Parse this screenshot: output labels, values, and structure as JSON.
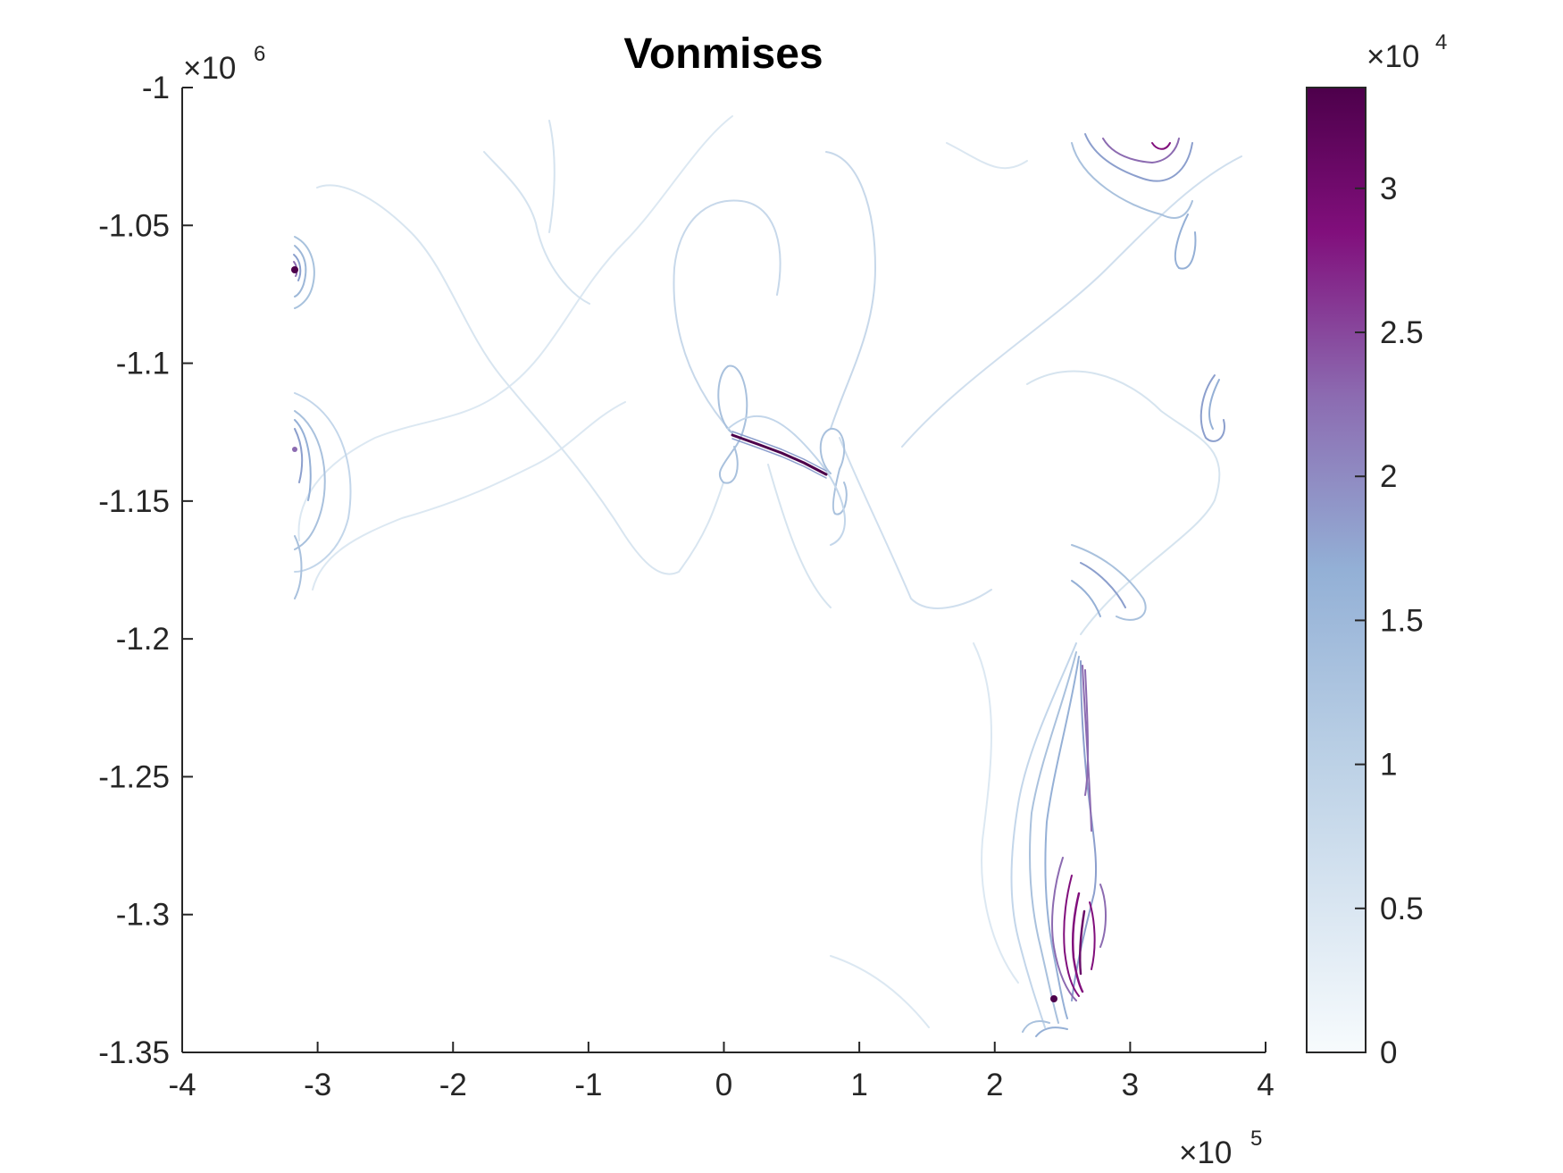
{
  "chart_data": {
    "type": "contour",
    "title": "Vonmises",
    "xlabel": "",
    "ylabel": "",
    "xlim": [
      -400000,
      400000
    ],
    "ylim": [
      -1350000,
      -1000000
    ],
    "x_ticks": [
      -4,
      -3,
      -2,
      -1,
      0,
      1,
      2,
      3,
      4
    ],
    "x_tick_labels": [
      "-4",
      "-3",
      "-2",
      "-1",
      "0",
      "1",
      "2",
      "3",
      "4"
    ],
    "x_exponent_label": "×10",
    "x_exponent": "5",
    "y_ticks": [
      -1,
      -1.05,
      -1.1,
      -1.15,
      -1.2,
      -1.25,
      -1.3,
      -1.35
    ],
    "y_tick_labels": [
      "-1",
      "-1.05",
      "-1.1",
      "-1.15",
      "-1.2",
      "-1.25",
      "-1.3",
      "-1.35"
    ],
    "y_exponent_label": "×10",
    "y_exponent": "6",
    "colorbar": {
      "range": [
        0,
        33500
      ],
      "ticks": [
        0,
        0.5,
        1,
        1.5,
        2,
        2.5,
        3
      ],
      "tick_labels": [
        "0",
        "0.5",
        "1",
        "1.5",
        "2",
        "2.5",
        "3"
      ],
      "exponent_label": "×10",
      "exponent": "4",
      "colormap": [
        "#f7fbfd",
        "#9ebcda",
        "#8c6bb1",
        "#810f7c",
        "#4d004b"
      ]
    },
    "grid": false,
    "features": [
      {
        "name": "left edge hotspot",
        "x": -316000,
        "y": -1067000,
        "peak": 33000
      },
      {
        "name": "central crack",
        "x_start": 8000,
        "y_start": -1128000,
        "x_end": 80000,
        "y_end": -1143000,
        "peak": 33000
      },
      {
        "name": "right lower hotspot",
        "x": 251000,
        "y": -1328000,
        "peak": 33000
      },
      {
        "name": "upper right cluster",
        "x": 320000,
        "y": -1020000,
        "peak": 25000
      }
    ]
  }
}
